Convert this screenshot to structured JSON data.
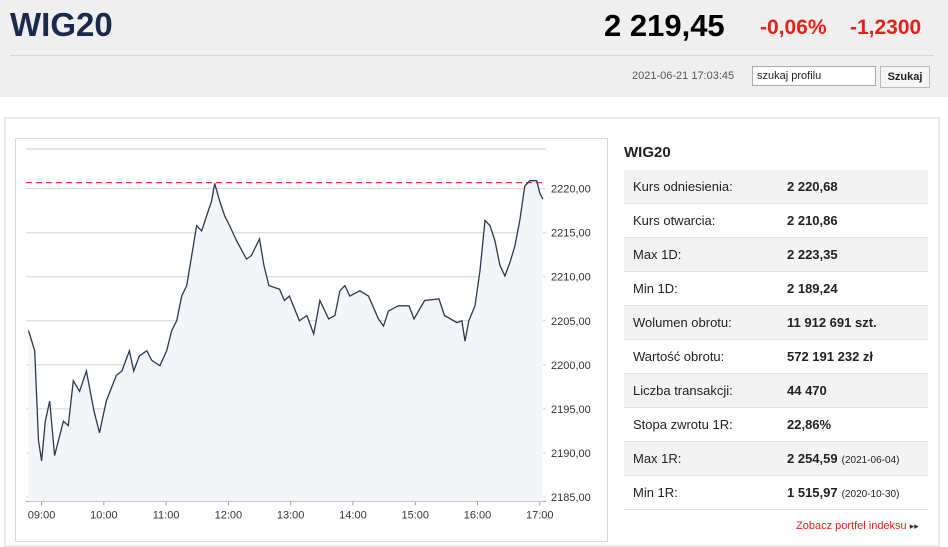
{
  "header": {
    "title": "WIG20",
    "price": "2 219,45",
    "change_pct": "-0,06%",
    "change": "-1,2300",
    "datetime": "2021-06-21 17:03:45",
    "search_placeholder": "szukaj profilu",
    "search_button": "Szukaj"
  },
  "chart_data": {
    "type": "line",
    "color": "#2b3a4e",
    "reference_line": 2220.68,
    "reference_color": "#e8383d",
    "grid": true,
    "x": [
      8.79,
      8.89,
      8.95,
      9.0,
      9.06,
      9.13,
      9.21,
      9.27,
      9.35,
      9.43,
      9.51,
      9.61,
      9.72,
      9.84,
      9.93,
      10.04,
      10.2,
      10.29,
      10.41,
      10.48,
      10.57,
      10.69,
      10.77,
      10.9,
      11.01,
      11.09,
      11.17,
      11.25,
      11.33,
      11.41,
      11.49,
      11.57,
      11.65,
      11.73,
      11.78,
      11.86,
      11.94,
      12.02,
      12.13,
      12.29,
      12.37,
      12.5,
      12.57,
      12.65,
      12.82,
      12.9,
      12.98,
      13.14,
      13.26,
      13.37,
      13.47,
      13.61,
      13.71,
      13.79,
      13.87,
      13.95,
      14.11,
      14.25,
      14.41,
      14.49,
      14.57,
      14.73,
      14.9,
      14.98,
      15.15,
      15.38,
      15.47,
      15.67,
      15.75,
      15.8,
      15.86,
      15.96,
      16.04,
      16.12,
      16.2,
      16.28,
      16.36,
      16.44,
      16.52,
      16.6,
      16.68,
      16.76,
      16.84,
      16.95,
      17.0,
      17.05
    ],
    "values": [
      2203.9,
      2201.6,
      2191.4,
      2189.1,
      2193.6,
      2195.9,
      2189.7,
      2191.4,
      2193.6,
      2193.1,
      2198.2,
      2197.0,
      2199.3,
      2194.8,
      2192.3,
      2195.9,
      2198.8,
      2199.3,
      2201.6,
      2199.3,
      2201.0,
      2201.6,
      2200.5,
      2199.9,
      2201.6,
      2203.9,
      2205.0,
      2207.8,
      2209.0,
      2212.4,
      2215.8,
      2215.2,
      2216.9,
      2218.6,
      2220.6,
      2218.6,
      2216.9,
      2215.8,
      2214.1,
      2212.0,
      2212.4,
      2214.3,
      2211.3,
      2209.0,
      2208.6,
      2207.3,
      2207.8,
      2205.0,
      2205.6,
      2203.5,
      2207.3,
      2205.2,
      2205.6,
      2208.4,
      2209.0,
      2207.8,
      2208.4,
      2207.8,
      2205.2,
      2204.4,
      2206.1,
      2206.7,
      2206.7,
      2205.2,
      2207.3,
      2207.5,
      2205.6,
      2204.8,
      2205.0,
      2202.7,
      2205.0,
      2206.7,
      2210.7,
      2216.4,
      2215.8,
      2214.1,
      2211.3,
      2210.1,
      2211.6,
      2213.5,
      2216.4,
      2220.3,
      2220.9,
      2220.9,
      2219.5,
      2218.8
    ],
    "xlim": [
      8.75,
      17.1
    ],
    "xticks": [
      {
        "value": 9,
        "label": "09:00"
      },
      {
        "value": 10,
        "label": "10:00"
      },
      {
        "value": 11,
        "label": "11:00"
      },
      {
        "value": 12,
        "label": "12:00"
      },
      {
        "value": 13,
        "label": "13:00"
      },
      {
        "value": 14,
        "label": "14:00"
      },
      {
        "value": 15,
        "label": "15:00"
      },
      {
        "value": 16,
        "label": "16:00"
      },
      {
        "value": 17,
        "label": "17:00"
      }
    ],
    "ylim": [
      2184.5,
      2224.5
    ],
    "yticks": [
      {
        "value": 2185,
        "label": "2185,00"
      },
      {
        "value": 2190,
        "label": "2190,00"
      },
      {
        "value": 2195,
        "label": "2195,00"
      },
      {
        "value": 2200,
        "label": "2200,00"
      },
      {
        "value": 2205,
        "label": "2205,00"
      },
      {
        "value": 2210,
        "label": "2210,00"
      },
      {
        "value": 2215,
        "label": "2215,00"
      },
      {
        "value": 2220,
        "label": "2220,00"
      }
    ]
  },
  "table": {
    "title": "WIG20",
    "rows": [
      {
        "label": "Kurs odniesienia:",
        "value": "2 220,68"
      },
      {
        "label": "Kurs otwarcia:",
        "value": "2 210,86"
      },
      {
        "label": "Max 1D:",
        "value": "2 223,35"
      },
      {
        "label": "Min 1D:",
        "value": "2 189,24"
      },
      {
        "label": "Wolumen obrotu:",
        "value": "11 912 691 szt."
      },
      {
        "label": "Wartość obrotu:",
        "value": "572 191 232 zł"
      },
      {
        "label": "Liczba transakcji:",
        "value": "44 470"
      },
      {
        "label": "Stopa zwrotu 1R:",
        "value": "22,86%"
      },
      {
        "label": "Max 1R:",
        "value": "2 254,59",
        "note": "(2021-06-04)"
      },
      {
        "label": "Min 1R:",
        "value": "1 515,97",
        "note": "(2020-10-30)"
      }
    ],
    "link": "Zobacz portfel indeksu"
  }
}
